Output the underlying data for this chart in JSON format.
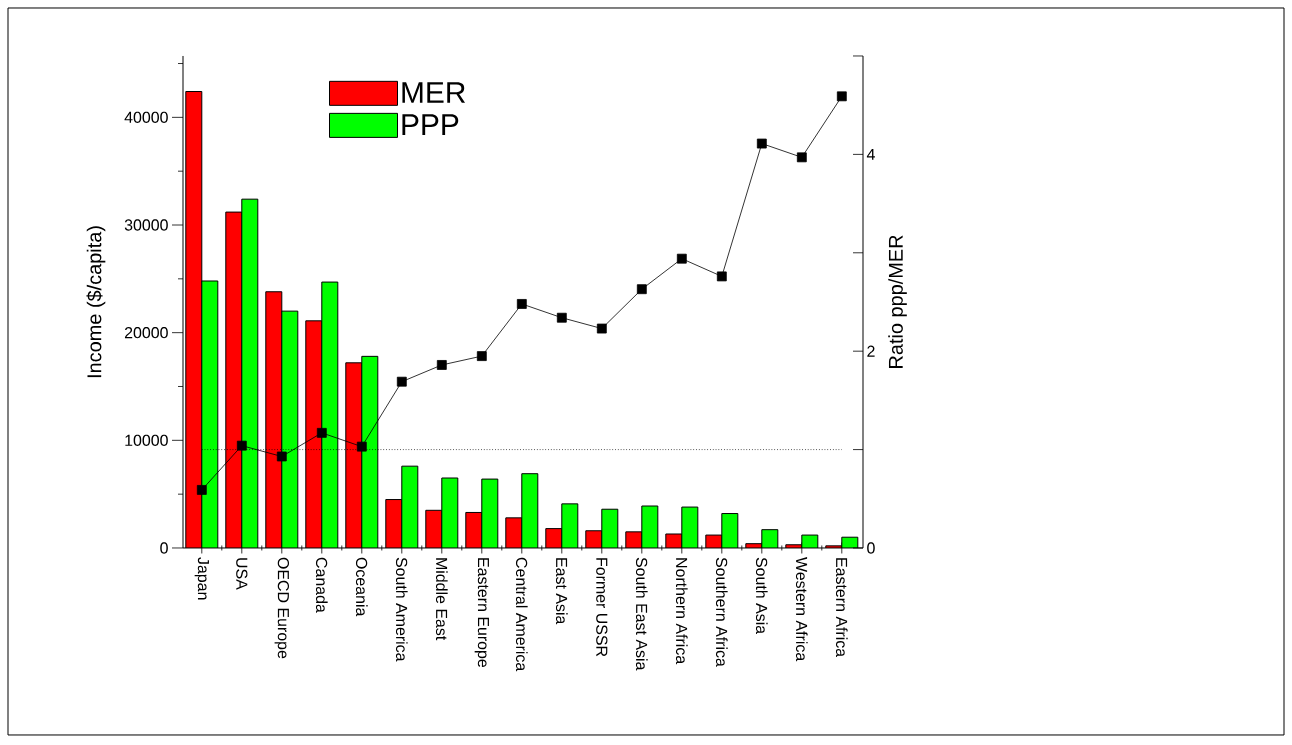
{
  "chart_data": {
    "type": "bar",
    "ylabel": "Income ($/capita)",
    "y2label": "Ratio ppp/MER",
    "categories": [
      "Japan",
      "USA",
      "OECD Europe",
      "Canada",
      "Oceania",
      "South America",
      "Middle East",
      "Eastern Europe",
      "Central America",
      "East Asia",
      "Former USSR",
      "South East Asia",
      "Northern Africa",
      "Southern Africa",
      "South Asia",
      "Western Africa",
      "Eastern Africa"
    ],
    "series": [
      {
        "name": "MER",
        "color": "#ff0000",
        "values": [
          42400,
          31200,
          23800,
          21100,
          17200,
          4500,
          3500,
          3300,
          2800,
          1800,
          1600,
          1500,
          1300,
          1200,
          400,
          300,
          200
        ]
      },
      {
        "name": "PPP",
        "color": "#00ff00",
        "values": [
          24800,
          32400,
          22000,
          24700,
          17800,
          7600,
          6500,
          6400,
          6900,
          4100,
          3600,
          3900,
          3800,
          3200,
          1700,
          1200,
          1000
        ]
      },
      {
        "type": "line",
        "axis": "y2",
        "color": "#000000",
        "marker": "square",
        "line_style": "solid",
        "values": [
          0.59,
          1.04,
          0.93,
          1.17,
          1.03,
          1.69,
          1.86,
          1.95,
          2.48,
          2.34,
          2.23,
          2.63,
          2.94,
          2.76,
          4.11,
          3.97,
          4.59
        ]
      }
    ],
    "ylim": [
      0,
      45700
    ],
    "yticks": [
      0,
      {
        "value": 5000,
        "label": null
      },
      10000,
      {
        "value": 15000,
        "label": null
      },
      20000,
      {
        "value": 25000,
        "label": null
      },
      30000,
      {
        "value": 35000,
        "label": null
      },
      40000,
      {
        "value": 45000,
        "label": null
      }
    ],
    "y2lim": [
      0,
      5
    ],
    "y2ticks": [
      0,
      {
        "value": 1,
        "label": null
      },
      2,
      {
        "value": 3,
        "label": null
      },
      4,
      {
        "value": 5,
        "label": null
      }
    ],
    "ref_lines": [
      {
        "axis": "y2",
        "value": 1,
        "line_style": "dotted",
        "color": "#000000"
      }
    ],
    "legend": "top left"
  }
}
